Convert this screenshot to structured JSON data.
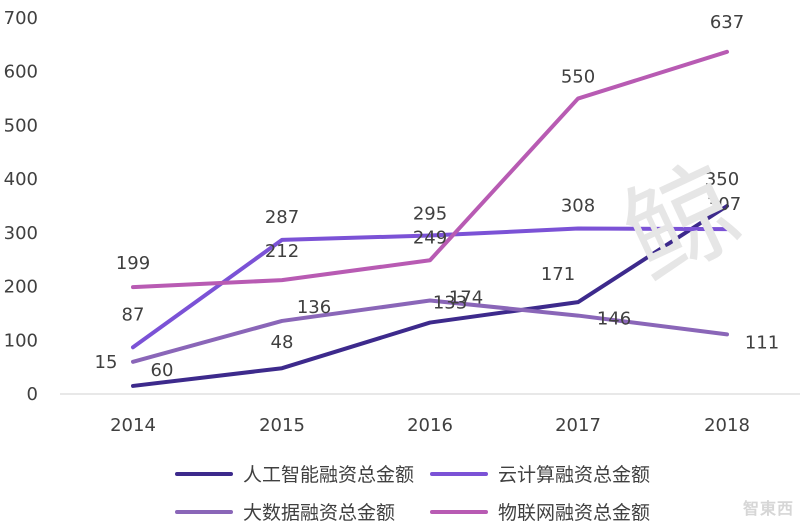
{
  "chart_data": {
    "type": "line",
    "categories": [
      "2014",
      "2015",
      "2016",
      "2017",
      "2018"
    ],
    "ylim": [
      0,
      700
    ],
    "yticks": [
      0,
      100,
      200,
      300,
      400,
      500,
      600,
      700
    ],
    "grid": false,
    "legend_position": "bottom",
    "series": [
      {
        "name": "人工智能融资总金额",
        "color": "#3d2a8c",
        "values": [
          15,
          48,
          133,
          171,
          350
        ]
      },
      {
        "name": "云计算融资总金额",
        "color": "#7b52d6",
        "values": [
          87,
          287,
          295,
          308,
          307
        ]
      },
      {
        "name": "大数据融资总金额",
        "color": "#8a66b8",
        "values": [
          60,
          136,
          174,
          146,
          111
        ]
      },
      {
        "name": "物联网融资总金额",
        "color": "#b85bb3",
        "values": [
          199,
          212,
          249,
          550,
          637
        ]
      }
    ]
  },
  "watermark": {
    "text": "鲸",
    "logo_text": "智東西"
  }
}
